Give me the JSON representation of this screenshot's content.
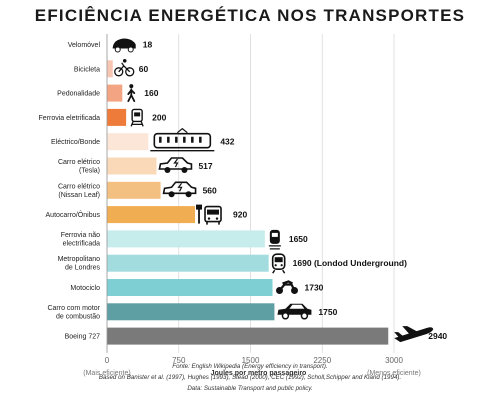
{
  "chart_data": {
    "type": "bar",
    "orientation": "horizontal",
    "title": "EFICIÊNCIA ENERGÉTICA NOS TRANSPORTES",
    "xlabel": "Joules por metro passageiro",
    "x_left_note": "(Mais eficiente)",
    "x_right_note": "(Menos eficiente)",
    "xlim": [
      0,
      3000
    ],
    "xticks": [
      "0",
      "750",
      "1500",
      "2250",
      "3000"
    ],
    "grid": true,
    "categories": [
      {
        "label": [
          "Velomóvel"
        ],
        "value": 18,
        "value_label": "18",
        "color": "#ffffff",
        "icon": "velomobile-icon"
      },
      {
        "label": [
          "Bicicleta"
        ],
        "value": 60,
        "value_label": "60",
        "color": "#f7c6b2",
        "icon": "bicycle-icon"
      },
      {
        "label": [
          "Pedonalidade"
        ],
        "value": 160,
        "value_label": "160",
        "color": "#f3a583",
        "icon": "pedestrian-icon"
      },
      {
        "label": [
          "Ferrovia eletrificada"
        ],
        "value": 200,
        "value_label": "200",
        "color": "#ee7b3a",
        "icon": "tram-front-icon"
      },
      {
        "label": [
          "Eléctrico/Bonde"
        ],
        "value": 432,
        "value_label": "432",
        "color": "#fce6d8",
        "icon": "tram-icon"
      },
      {
        "label": [
          "Carro elétrico",
          "(Tesla)"
        ],
        "value": 517,
        "value_label": "517",
        "color": "#f9d9b8",
        "icon": "electric-car-icon"
      },
      {
        "label": [
          "Carro elétrico",
          "(Nissan Leaf)"
        ],
        "value": 560,
        "value_label": "560",
        "color": "#f4c082",
        "icon": "electric-car-icon"
      },
      {
        "label": [
          "Autocarro/Ônibus"
        ],
        "value": 920,
        "value_label": "920",
        "color": "#f1ad52",
        "icon": "bus-stop-icon"
      },
      {
        "label": [
          "Ferrovia não",
          "electrificada"
        ],
        "value": 1650,
        "value_label": "1650",
        "color": "#c7ecec",
        "icon": "train-icon"
      },
      {
        "label": [
          "Metropolitano",
          "de Londres"
        ],
        "value": 1690,
        "value_label": "1690  (Londod Underground)",
        "color": "#a3dcdf",
        "icon": "metro-icon"
      },
      {
        "label": [
          "Motociclo"
        ],
        "value": 1730,
        "value_label": "1730",
        "color": "#7ecfd3",
        "icon": "motorcycle-icon"
      },
      {
        "label": [
          "Carro com motor",
          "de combustão"
        ],
        "value": 1750,
        "value_label": "1750",
        "color": "#5d9fa2",
        "icon": "car-icon"
      },
      {
        "label": [
          "Boeing 727"
        ],
        "value": 2940,
        "value_label": "2940",
        "color": "#7a7a7a",
        "icon": "airplane-icon"
      }
    ]
  },
  "footnotes": [
    "Fonte: English Wikipedia (Energy efficiency in transport).",
    "Based on Banister et al. (1997), Hughes (1993), Stead (2000), CEC (1992), Scholl,Schipper and Kiand (1994).",
    "Data: Sustainable Transport and public policy."
  ]
}
